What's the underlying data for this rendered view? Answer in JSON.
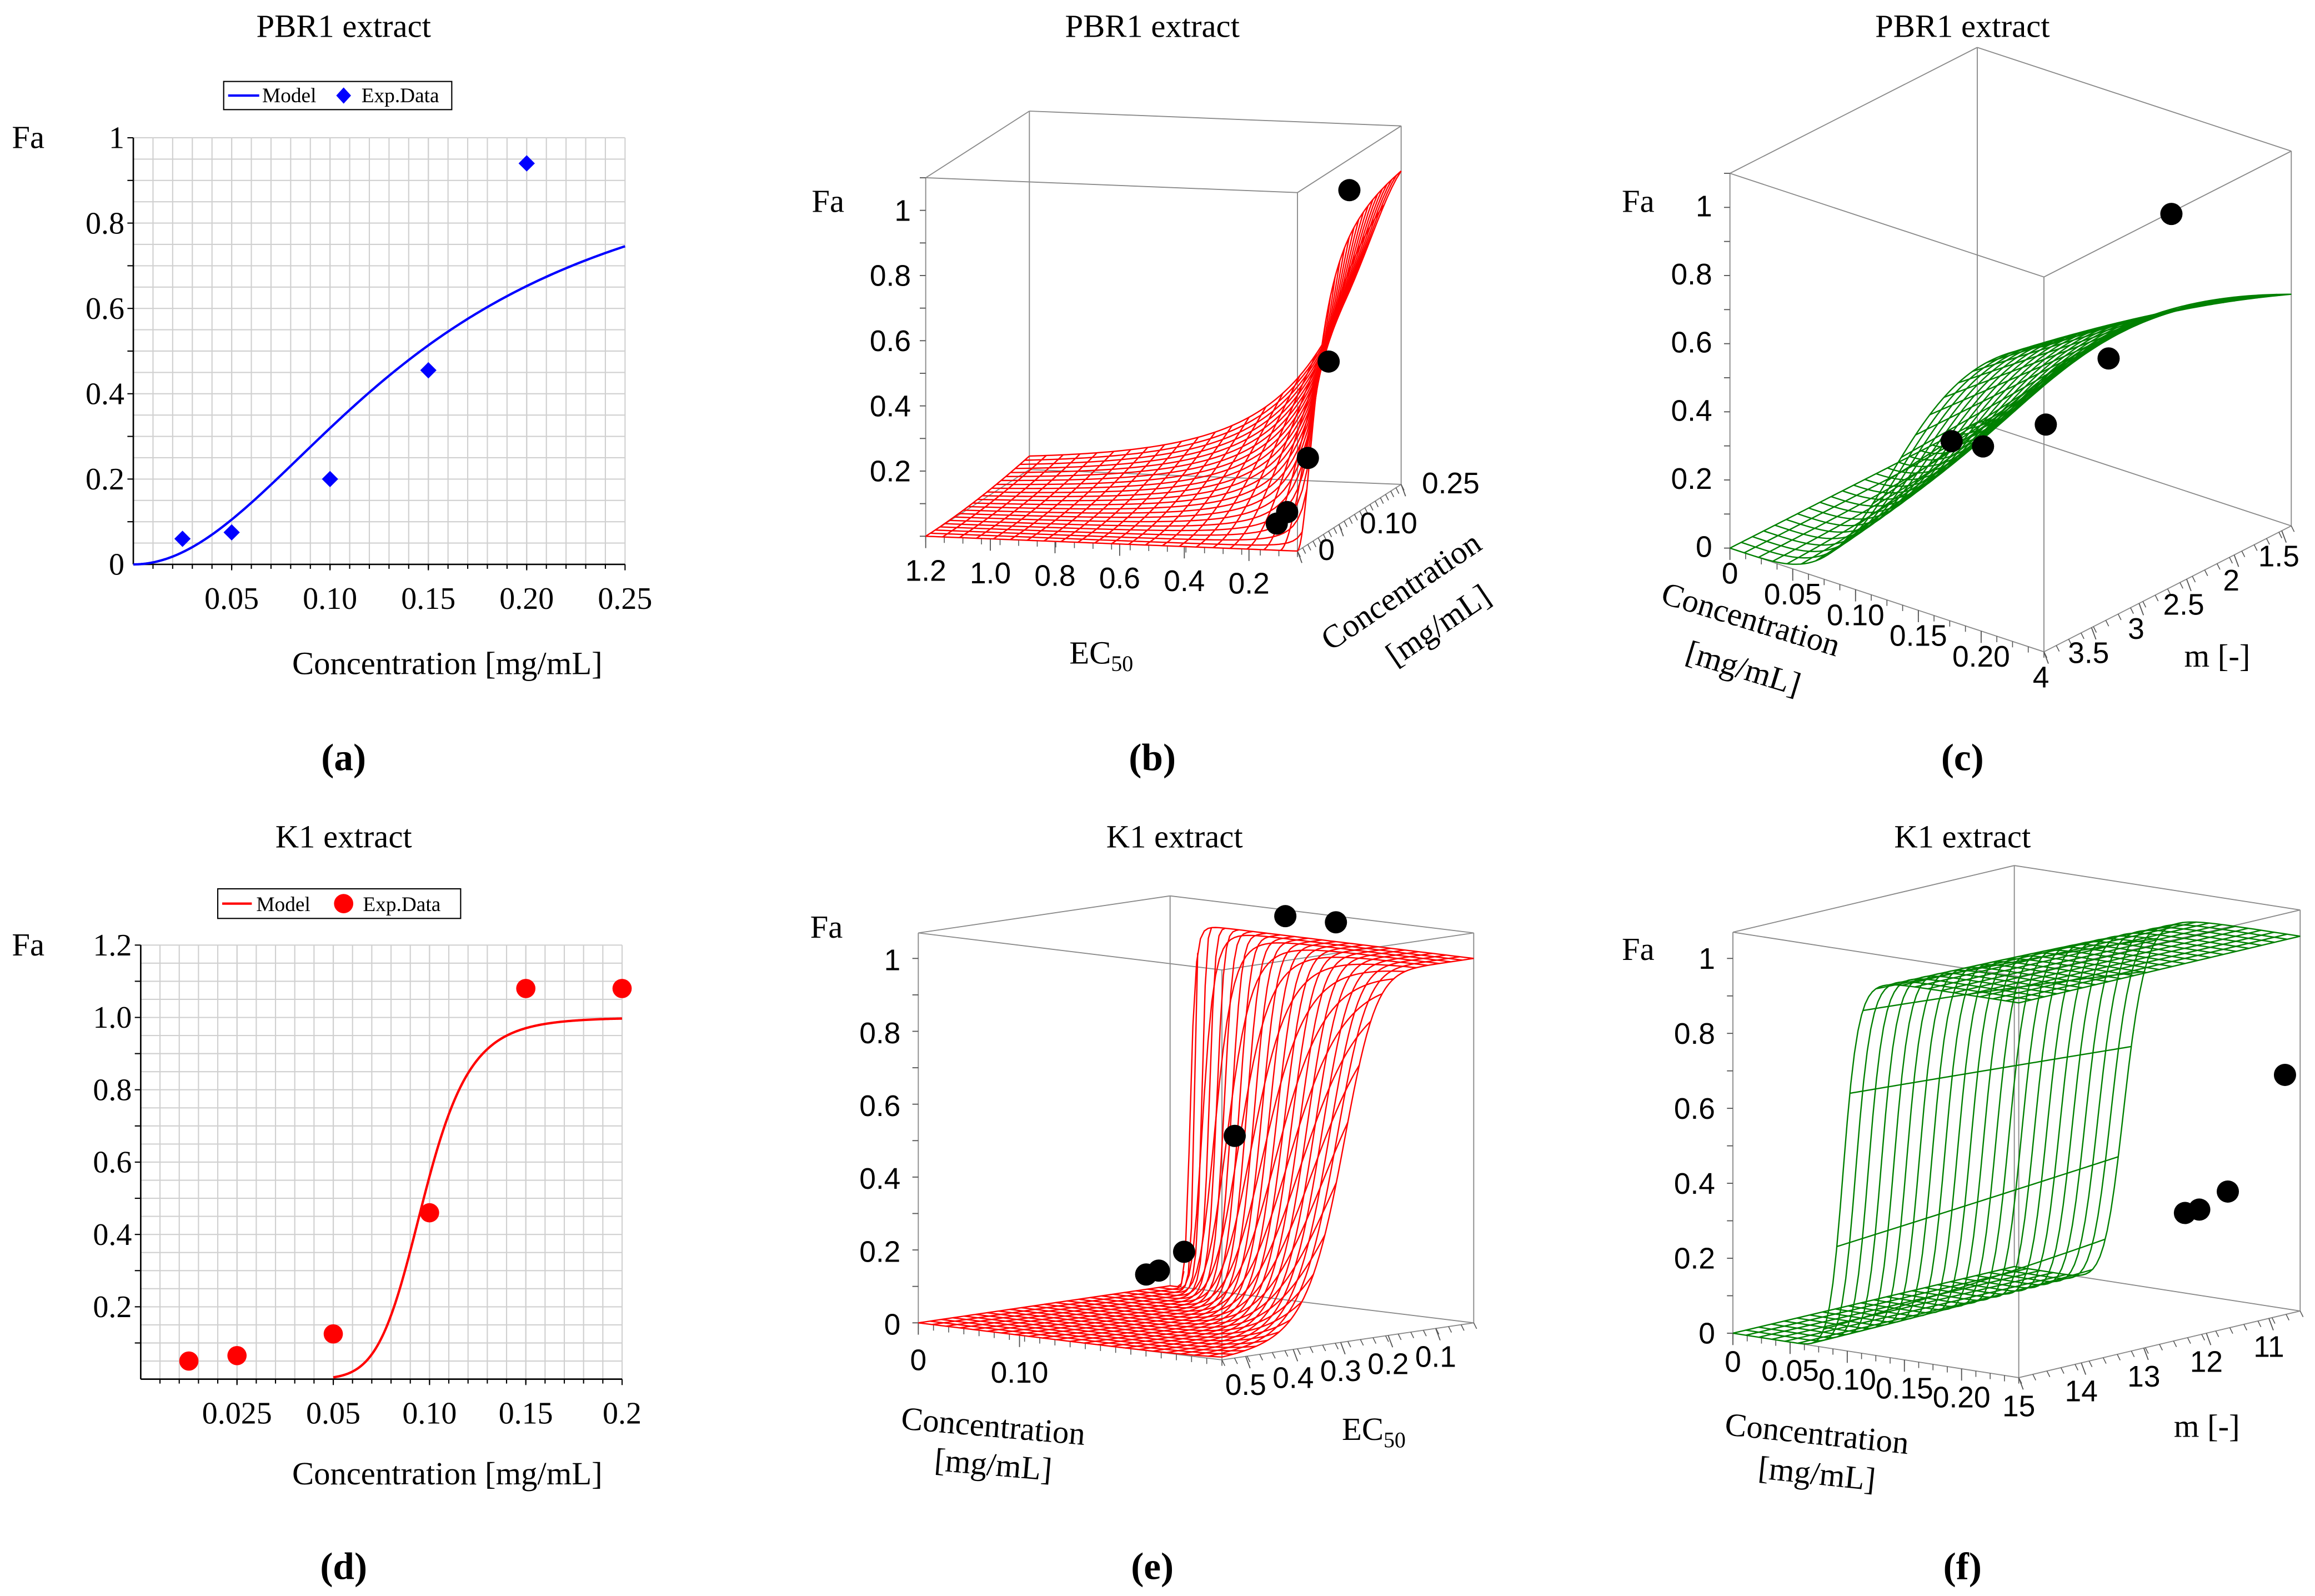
{
  "chart_data": [
    {
      "id": "a",
      "type": "line+scatter",
      "title": "PBR1 extract",
      "caption": "(a)",
      "ylabel": "Fa",
      "xlabel": "Concentration [mg/mL]",
      "xlim": [
        0,
        0.25
      ],
      "ylim": [
        0,
        1
      ],
      "x_scale": "linear",
      "x_ticks": [
        0.05,
        0.1,
        0.15,
        0.2,
        0.25
      ],
      "x_tick_labels": [
        "0.05",
        "0.10",
        "0.15",
        "0.20",
        "0.25"
      ],
      "y_ticks": [
        0,
        0.2,
        0.4,
        0.6,
        0.8,
        1
      ],
      "y_tick_labels": [
        "0",
        "0.2",
        "0.4",
        "0.6",
        "0.8",
        "1"
      ],
      "grid": true,
      "legend": {
        "placement": "top-center",
        "entries": [
          "Model",
          "Exp.Data"
        ]
      },
      "color": "#0000ff",
      "marker": "diamond",
      "model": {
        "form": "hill",
        "EC50": 0.146,
        "m": 2.0,
        "x_range": [
          0,
          0.25
        ]
      },
      "series": [
        {
          "name": "Exp.Data",
          "x": [
            0.025,
            0.05,
            0.1,
            0.15,
            0.2
          ],
          "y": [
            0.06,
            0.075,
            0.2,
            0.455,
            0.94
          ]
        }
      ]
    },
    {
      "id": "b",
      "type": "surface3d",
      "title": "PBR1 extract",
      "caption": "(b)",
      "zlabel": "Fa",
      "axis_a": {
        "name": "EC50",
        "label_main": "EC",
        "label_sub": "50",
        "range": [
          1.2,
          0.05
        ],
        "ticks": [
          1.2,
          1.0,
          0.8,
          0.6,
          0.4,
          0.2
        ],
        "tick_labels": [
          "1.2",
          "1.0",
          "0.8",
          "0.6",
          "0.4",
          "0.2"
        ]
      },
      "axis_b": {
        "name": "conc",
        "label_line1": "Concentration",
        "label_line2": "[mg/mL]",
        "range": [
          0,
          0.25
        ],
        "ticks": [
          0,
          0.1,
          0.25
        ],
        "tick_labels": [
          "0",
          "0.10",
          "0.25"
        ]
      },
      "zlim": [
        0,
        1.1
      ],
      "z_ticks": [
        0.2,
        0.4,
        0.6,
        0.8,
        1
      ],
      "z_tick_labels": [
        "0.2",
        "0.4",
        "0.6",
        "0.8",
        "1"
      ],
      "color": "#ff0000",
      "model": {
        "form": "hill",
        "EC50": 0.146,
        "m": 2.0
      },
      "points": {
        "conc": [
          0.025,
          0.05,
          0.1,
          0.15,
          0.2
        ],
        "fa": [
          0.06,
          0.075,
          0.2,
          0.455,
          0.94
        ]
      }
    },
    {
      "id": "c",
      "type": "surface3d",
      "title": "PBR1 extract",
      "caption": "(c)",
      "zlabel": "Fa",
      "axis_a": {
        "name": "conc",
        "label_line1": "Concentration",
        "label_line2": "[mg/mL]",
        "range": [
          0,
          0.25
        ],
        "ticks": [
          0,
          0.05,
          0.1,
          0.15,
          0.2
        ],
        "tick_labels": [
          "0",
          "0.05",
          "0.10",
          "0.15",
          "0.20"
        ]
      },
      "axis_b": {
        "name": "m",
        "label": "m [-]",
        "range": [
          4,
          1.4
        ],
        "ticks": [
          4,
          3.5,
          3,
          2.5,
          2,
          1.5
        ],
        "tick_labels": [
          "4",
          "3.5",
          "3",
          "2.5",
          "2",
          "1.5"
        ]
      },
      "zlim": [
        0,
        1.1
      ],
      "z_ticks": [
        0,
        0.2,
        0.4,
        0.6,
        0.8,
        1
      ],
      "z_tick_labels": [
        "0",
        "0.2",
        "0.4",
        "0.6",
        "0.8",
        "1"
      ],
      "color": "#008000",
      "model": {
        "form": "hill",
        "EC50": 0.146,
        "m": 2.0
      },
      "points": {
        "conc": [
          0.025,
          0.05,
          0.1,
          0.15,
          0.2
        ],
        "fa": [
          0.06,
          0.075,
          0.2,
          0.455,
          0.94
        ]
      }
    },
    {
      "id": "d",
      "type": "line+scatter",
      "title": "K1 extract",
      "caption": "(d)",
      "ylabel": "Fa",
      "xlabel": "Concentration [mg/mL]",
      "xlim": [
        0,
        0.2
      ],
      "ylim": [
        0,
        1.2
      ],
      "x_scale": "piecewise-equal-spacing",
      "x_breaks": [
        0,
        0.025,
        0.05,
        0.1,
        0.15,
        0.2
      ],
      "x_ticks": [
        0.025,
        0.05,
        0.1,
        0.15,
        0.2
      ],
      "x_tick_labels": [
        "0.025",
        "0.05",
        "0.10",
        "0.15",
        "0.2"
      ],
      "y_ticks": [
        0.2,
        0.4,
        0.6,
        0.8,
        1.0,
        1.2
      ],
      "y_tick_labels": [
        "0.2",
        "0.4",
        "0.6",
        "0.8",
        "1.0",
        "1.2"
      ],
      "grid": true,
      "legend": {
        "placement": "top-center",
        "entries": [
          "Model",
          "Exp.Data"
        ]
      },
      "color": "#ff0000",
      "marker": "circle",
      "model": {
        "form": "hill",
        "EC50": 0.097,
        "m": 8.0,
        "x_range": [
          0.05,
          0.2
        ]
      },
      "series": [
        {
          "name": "Exp.Data",
          "x": [
            0.0125,
            0.025,
            0.05,
            0.1,
            0.15,
            0.2
          ],
          "y": [
            0.05,
            0.065,
            0.125,
            0.46,
            1.08,
            1.08
          ]
        }
      ]
    },
    {
      "id": "e",
      "type": "surface3d",
      "title": "K1 extract",
      "caption": "(e)",
      "zlabel": "Fa",
      "axis_a": {
        "name": "conc",
        "label_line1": "Concentration",
        "label_line2": "[mg/mL]",
        "range": [
          0,
          0.3
        ],
        "ticks": [
          0,
          0.1
        ],
        "tick_labels": [
          "0",
          "0.10"
        ]
      },
      "axis_b": {
        "name": "EC50",
        "label_main": "EC",
        "label_sub": "50",
        "range": [
          0.55,
          0.02
        ],
        "ticks": [
          0.5,
          0.4,
          0.3,
          0.2,
          0.1
        ],
        "tick_labels": [
          "0.5",
          "0.4",
          "0.3",
          "0.2",
          "0.1"
        ]
      },
      "zlim": [
        0,
        1.07
      ],
      "z_ticks": [
        0,
        0.2,
        0.4,
        0.6,
        0.8,
        1
      ],
      "z_tick_labels": [
        "0",
        "0.2",
        "0.4",
        "0.6",
        "0.8",
        "1"
      ],
      "color": "#ff0000",
      "model": {
        "form": "hill",
        "EC50": 0.097,
        "m": 8.0
      },
      "points": {
        "conc": [
          0.0125,
          0.025,
          0.05,
          0.1,
          0.15,
          0.2
        ],
        "fa": [
          0.05,
          0.065,
          0.125,
          0.46,
          1.08,
          1.08
        ]
      }
    },
    {
      "id": "f",
      "type": "surface3d",
      "title": "K1 extract",
      "caption": "(f)",
      "zlabel": "Fa",
      "axis_a": {
        "name": "conc",
        "label_line1": "Concentration",
        "label_line2": "[mg/mL]",
        "range": [
          0,
          0.25
        ],
        "ticks": [
          0,
          0.05,
          0.1,
          0.15,
          0.2
        ],
        "tick_labels": [
          "0",
          "0.05",
          "0.10",
          "0.15",
          "0.20"
        ]
      },
      "axis_b": {
        "name": "m",
        "label": "m [-]",
        "range": [
          15,
          10.5
        ],
        "ticks": [
          15,
          14,
          13,
          12,
          11
        ],
        "tick_labels": [
          "15",
          "14",
          "13",
          "12",
          "11"
        ]
      },
      "zlim": [
        0,
        1.07
      ],
      "z_ticks": [
        0,
        0.2,
        0.4,
        0.6,
        0.8,
        1
      ],
      "z_tick_labels": [
        "0",
        "0.2",
        "0.4",
        "0.6",
        "0.8",
        "1"
      ],
      "color": "#008000",
      "model": {
        "form": "hill",
        "EC50": 0.097,
        "m": 8.0
      },
      "points": {
        "conc": [
          0.0125,
          0.025,
          0.05,
          0.1,
          0.15,
          0.2
        ],
        "fa": [
          0.05,
          0.065,
          0.125,
          0.46,
          1.08,
          1.08
        ]
      }
    }
  ]
}
